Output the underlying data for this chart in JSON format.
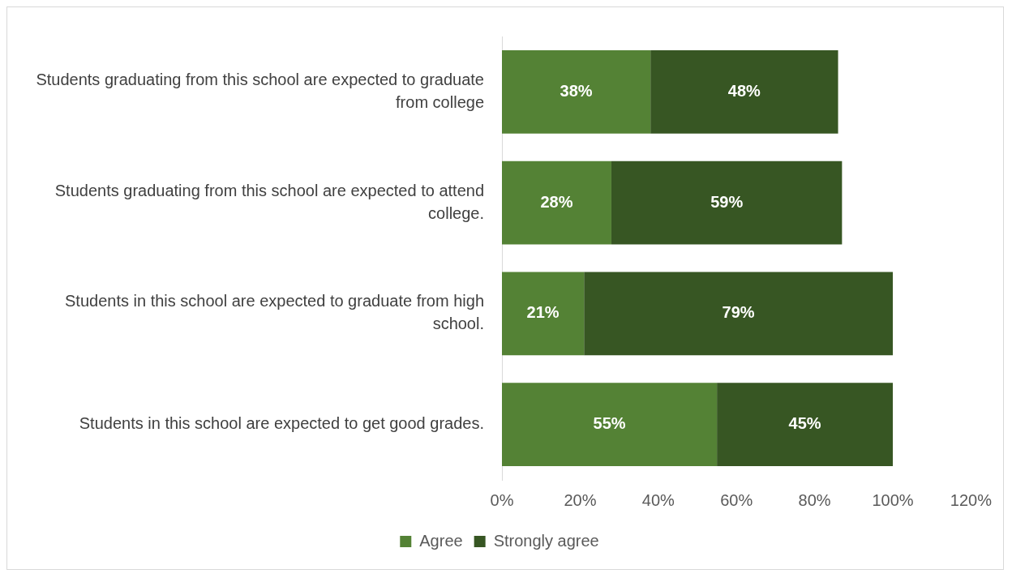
{
  "chart_data": {
    "type": "bar",
    "orientation": "horizontal",
    "stacked": true,
    "categories": [
      "Students graduating from this school are expected to graduate from college",
      "Students graduating from this school are expected to attend college.",
      "Students in this school are expected to graduate from high school.",
      "Students in this school are expected to get good grades."
    ],
    "series": [
      {
        "name": "Agree",
        "color": "#548235",
        "values": [
          38,
          28,
          21,
          55
        ],
        "value_labels": [
          "38%",
          "28%",
          "21%",
          "55%"
        ]
      },
      {
        "name": "Strongly agree",
        "color": "#375623",
        "values": [
          48,
          59,
          79,
          45
        ],
        "value_labels": [
          "48%",
          "59%",
          "79%",
          "45%"
        ]
      }
    ],
    "xlim": [
      0,
      120
    ],
    "xticks": [
      {
        "value": 0,
        "label": "0%"
      },
      {
        "value": 20,
        "label": "20%"
      },
      {
        "value": 40,
        "label": "40%"
      },
      {
        "value": 60,
        "label": "60%"
      },
      {
        "value": 80,
        "label": "80%"
      },
      {
        "value": 100,
        "label": "100%"
      },
      {
        "value": 120,
        "label": "120%"
      }
    ],
    "grid": false,
    "legend": "bottom"
  }
}
